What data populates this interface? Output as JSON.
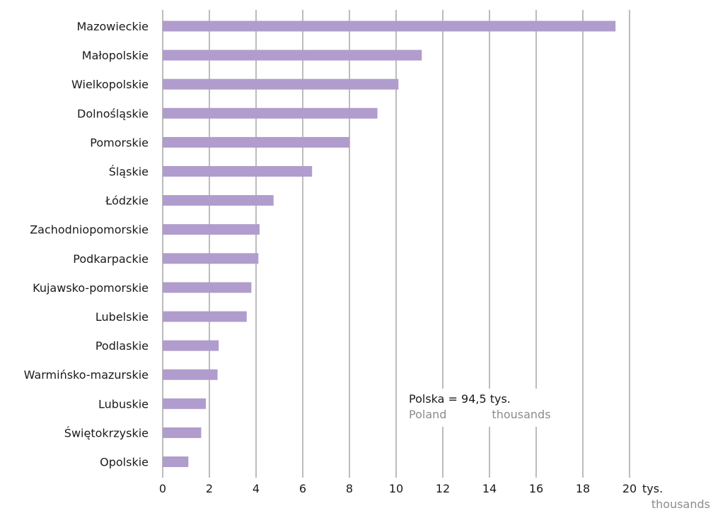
{
  "chart_data": {
    "type": "bar",
    "orientation": "horizontal",
    "categories": [
      "Mazowieckie",
      "Małopolskie",
      "Wielkopolskie",
      "Dolnośląskie",
      "Pomorskie",
      "Śląskie",
      "Łódzkie",
      "Zachodniopomorskie",
      "Podkarpackie",
      "Kujawsko-pomorskie",
      "Lubelskie",
      "Podlaskie",
      "Warmińsko-mazurskie",
      "Lubuskie",
      "Świętokrzyskie",
      "Opolskie"
    ],
    "values": [
      19.4,
      11.1,
      10.1,
      9.2,
      8.0,
      6.4,
      4.75,
      4.15,
      4.1,
      3.8,
      3.6,
      2.4,
      2.35,
      1.85,
      1.65,
      1.1
    ],
    "xlim": [
      0,
      20
    ],
    "xticks": [
      "0",
      "2",
      "4",
      "6",
      "8",
      "10",
      "12",
      "14",
      "16",
      "18",
      "20"
    ],
    "unit_label": "tys.",
    "unit_label_en": "thousands",
    "bar_color": "#b09ccd",
    "grid": true
  },
  "annotation": {
    "total_text": "Polska = 94,5 tys.",
    "total_text_en_poland": "Poland",
    "total_text_en_thousands": "thousands"
  }
}
